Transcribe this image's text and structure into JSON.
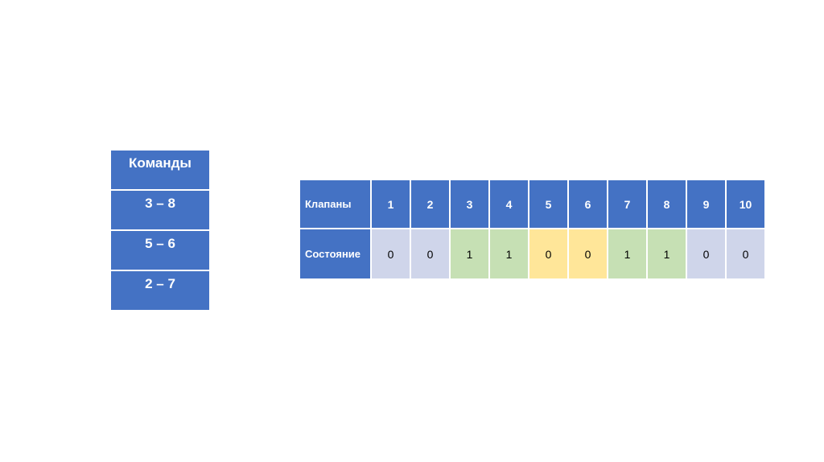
{
  "commands": {
    "header": "Команды",
    "items": [
      "3 – 8",
      "5 – 6",
      "2 – 7"
    ]
  },
  "valves": {
    "row_label": "Клапаны",
    "state_label": "Состояние",
    "numbers": [
      "1",
      "2",
      "3",
      "4",
      "5",
      "6",
      "7",
      "8",
      "9",
      "10"
    ],
    "states": [
      "0",
      "0",
      "1",
      "1",
      "0",
      "0",
      "1",
      "1",
      "0",
      "0"
    ]
  },
  "colors": {
    "header": "#4472C4",
    "commanded_3_8": "#C6E0B4",
    "commanded_5_6": "#FFE699",
    "default": "#CFD5EA"
  }
}
